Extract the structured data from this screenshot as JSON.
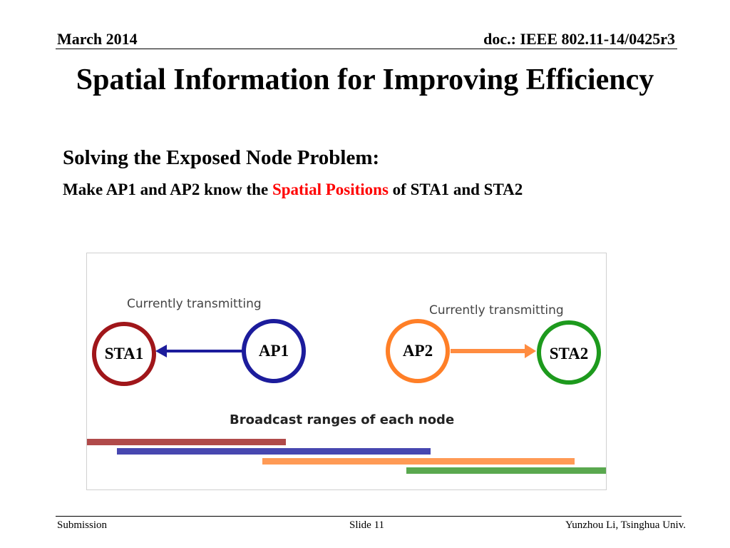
{
  "header": {
    "date": "March 2014",
    "doc_id": "doc.: IEEE 802.11-14/0425r3"
  },
  "slide": {
    "title": "Spatial Information for Improving Efficiency",
    "subtitle": "Solving the Exposed Node Problem:",
    "body_prefix": "Make AP1 and AP2 know the",
    "body_highlight": "Spatial Positions",
    "body_suffix": "of STA1 and STA2",
    "highlight_color": "#ff0000"
  },
  "figure": {
    "left_caption": "Currently transmitting",
    "right_caption": "Currently transmitting",
    "broadcast_caption": "Broadcast ranges of each node",
    "nodes": [
      {
        "label": "STA1",
        "color": "#a0161a"
      },
      {
        "label": "AP1",
        "color": "#1c1c9c"
      },
      {
        "label": "AP2",
        "color": "#ff7f27"
      },
      {
        "label": "STA2",
        "color": "#1d9a1d"
      }
    ],
    "arrow_colors": {
      "left": "#1c1c9c",
      "right": "#ff8c40"
    },
    "range_colors": [
      "#b04a4a",
      "#4747b0",
      "#ff9a55",
      "#5aa84f"
    ]
  },
  "footer": {
    "left": "Submission",
    "center": "Slide 11",
    "right": "Yunzhou Li, Tsinghua Univ."
  }
}
